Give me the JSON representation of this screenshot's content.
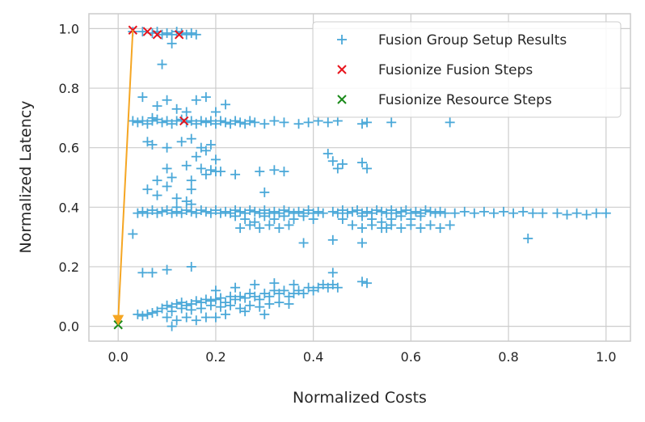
{
  "chart_data": {
    "type": "scatter",
    "xlabel": "Normalized Costs",
    "ylabel": "Normalized Latency",
    "xlim": [
      -0.06,
      1.05
    ],
    "ylim": [
      -0.05,
      1.05
    ],
    "xticks": [
      0.0,
      0.2,
      0.4,
      0.6,
      0.8,
      1.0
    ],
    "xtick_labels": [
      "0.0",
      "0.2",
      "0.4",
      "0.6",
      "0.8",
      "1.0"
    ],
    "yticks": [
      0.0,
      0.2,
      0.4,
      0.6,
      0.8,
      1.0
    ],
    "ytick_labels": [
      "0.0",
      "0.2",
      "0.4",
      "0.6",
      "0.8",
      "1.0"
    ],
    "grid": true,
    "legend_position": "top-right",
    "series": [
      {
        "name": "Fusion Group Setup Results",
        "marker": "plus",
        "color": "#4aa8d8",
        "points": [
          [
            0.03,
            0.99
          ],
          [
            0.05,
            0.99
          ],
          [
            0.07,
            0.985
          ],
          [
            0.08,
            0.99
          ],
          [
            0.09,
            0.98
          ],
          [
            0.1,
            0.985
          ],
          [
            0.11,
            0.98
          ],
          [
            0.12,
            0.99
          ],
          [
            0.13,
            0.985
          ],
          [
            0.14,
            0.98
          ],
          [
            0.15,
            0.985
          ],
          [
            0.16,
            0.98
          ],
          [
            0.11,
            0.95
          ],
          [
            0.09,
            0.88
          ],
          [
            0.05,
            0.77
          ],
          [
            0.08,
            0.74
          ],
          [
            0.1,
            0.76
          ],
          [
            0.12,
            0.73
          ],
          [
            0.14,
            0.72
          ],
          [
            0.16,
            0.76
          ],
          [
            0.18,
            0.77
          ],
          [
            0.22,
            0.745
          ],
          [
            0.07,
            0.7
          ],
          [
            0.2,
            0.72
          ],
          [
            0.03,
            0.69
          ],
          [
            0.04,
            0.685
          ],
          [
            0.05,
            0.69
          ],
          [
            0.06,
            0.68
          ],
          [
            0.07,
            0.69
          ],
          [
            0.08,
            0.695
          ],
          [
            0.09,
            0.685
          ],
          [
            0.1,
            0.69
          ],
          [
            0.11,
            0.68
          ],
          [
            0.12,
            0.69
          ],
          [
            0.13,
            0.695
          ],
          [
            0.14,
            0.685
          ],
          [
            0.15,
            0.69
          ],
          [
            0.16,
            0.68
          ],
          [
            0.17,
            0.69
          ],
          [
            0.18,
            0.685
          ],
          [
            0.19,
            0.69
          ],
          [
            0.2,
            0.68
          ],
          [
            0.21,
            0.69
          ],
          [
            0.22,
            0.685
          ],
          [
            0.23,
            0.68
          ],
          [
            0.24,
            0.69
          ],
          [
            0.25,
            0.685
          ],
          [
            0.26,
            0.68
          ],
          [
            0.27,
            0.69
          ],
          [
            0.28,
            0.685
          ],
          [
            0.3,
            0.68
          ],
          [
            0.32,
            0.69
          ],
          [
            0.34,
            0.685
          ],
          [
            0.37,
            0.68
          ],
          [
            0.39,
            0.685
          ],
          [
            0.41,
            0.69
          ],
          [
            0.43,
            0.685
          ],
          [
            0.45,
            0.69
          ],
          [
            0.5,
            0.68
          ],
          [
            0.51,
            0.685
          ],
          [
            0.56,
            0.685
          ],
          [
            0.68,
            0.685
          ],
          [
            0.06,
            0.62
          ],
          [
            0.07,
            0.61
          ],
          [
            0.1,
            0.6
          ],
          [
            0.13,
            0.62
          ],
          [
            0.15,
            0.63
          ],
          [
            0.17,
            0.6
          ],
          [
            0.18,
            0.59
          ],
          [
            0.19,
            0.61
          ],
          [
            0.16,
            0.57
          ],
          [
            0.2,
            0.56
          ],
          [
            0.43,
            0.58
          ],
          [
            0.44,
            0.555
          ],
          [
            0.46,
            0.545
          ],
          [
            0.5,
            0.55
          ],
          [
            0.51,
            0.53
          ],
          [
            0.45,
            0.53
          ],
          [
            0.1,
            0.53
          ],
          [
            0.14,
            0.54
          ],
          [
            0.17,
            0.53
          ],
          [
            0.19,
            0.525
          ],
          [
            0.2,
            0.52
          ],
          [
            0.21,
            0.52
          ],
          [
            0.24,
            0.51
          ],
          [
            0.29,
            0.52
          ],
          [
            0.32,
            0.525
          ],
          [
            0.34,
            0.52
          ],
          [
            0.08,
            0.49
          ],
          [
            0.11,
            0.5
          ],
          [
            0.15,
            0.49
          ],
          [
            0.18,
            0.51
          ],
          [
            0.06,
            0.46
          ],
          [
            0.1,
            0.47
          ],
          [
            0.15,
            0.46
          ],
          [
            0.3,
            0.45
          ],
          [
            0.08,
            0.44
          ],
          [
            0.12,
            0.43
          ],
          [
            0.14,
            0.42
          ],
          [
            0.04,
            0.38
          ],
          [
            0.05,
            0.385
          ],
          [
            0.06,
            0.38
          ],
          [
            0.07,
            0.39
          ],
          [
            0.08,
            0.38
          ],
          [
            0.09,
            0.385
          ],
          [
            0.1,
            0.39
          ],
          [
            0.11,
            0.38
          ],
          [
            0.12,
            0.385
          ],
          [
            0.13,
            0.38
          ],
          [
            0.14,
            0.39
          ],
          [
            0.15,
            0.385
          ],
          [
            0.16,
            0.38
          ],
          [
            0.17,
            0.39
          ],
          [
            0.18,
            0.385
          ],
          [
            0.19,
            0.38
          ],
          [
            0.2,
            0.39
          ],
          [
            0.21,
            0.38
          ],
          [
            0.22,
            0.385
          ],
          [
            0.23,
            0.38
          ],
          [
            0.24,
            0.39
          ],
          [
            0.25,
            0.385
          ],
          [
            0.26,
            0.38
          ],
          [
            0.27,
            0.39
          ],
          [
            0.28,
            0.385
          ],
          [
            0.29,
            0.38
          ],
          [
            0.3,
            0.39
          ],
          [
            0.31,
            0.38
          ],
          [
            0.32,
            0.385
          ],
          [
            0.33,
            0.38
          ],
          [
            0.34,
            0.39
          ],
          [
            0.35,
            0.385
          ],
          [
            0.36,
            0.38
          ],
          [
            0.37,
            0.385
          ],
          [
            0.38,
            0.38
          ],
          [
            0.39,
            0.39
          ],
          [
            0.4,
            0.38
          ],
          [
            0.41,
            0.385
          ],
          [
            0.42,
            0.38
          ],
          [
            0.44,
            0.385
          ],
          [
            0.45,
            0.38
          ],
          [
            0.46,
            0.39
          ],
          [
            0.47,
            0.38
          ],
          [
            0.48,
            0.385
          ],
          [
            0.49,
            0.39
          ],
          [
            0.5,
            0.38
          ],
          [
            0.51,
            0.385
          ],
          [
            0.52,
            0.38
          ],
          [
            0.53,
            0.39
          ],
          [
            0.54,
            0.385
          ],
          [
            0.55,
            0.38
          ],
          [
            0.56,
            0.39
          ],
          [
            0.57,
            0.38
          ],
          [
            0.58,
            0.385
          ],
          [
            0.59,
            0.39
          ],
          [
            0.6,
            0.38
          ],
          [
            0.61,
            0.385
          ],
          [
            0.62,
            0.38
          ],
          [
            0.63,
            0.39
          ],
          [
            0.64,
            0.385
          ],
          [
            0.65,
            0.38
          ],
          [
            0.66,
            0.385
          ],
          [
            0.67,
            0.38
          ],
          [
            0.69,
            0.38
          ],
          [
            0.71,
            0.385
          ],
          [
            0.73,
            0.38
          ],
          [
            0.75,
            0.385
          ],
          [
            0.77,
            0.38
          ],
          [
            0.79,
            0.385
          ],
          [
            0.81,
            0.38
          ],
          [
            0.83,
            0.385
          ],
          [
            0.85,
            0.38
          ],
          [
            0.87,
            0.38
          ],
          [
            0.9,
            0.38
          ],
          [
            0.92,
            0.375
          ],
          [
            0.94,
            0.38
          ],
          [
            0.96,
            0.375
          ],
          [
            0.98,
            0.38
          ],
          [
            1.0,
            0.38
          ],
          [
            0.24,
            0.37
          ],
          [
            0.26,
            0.36
          ],
          [
            0.28,
            0.35
          ],
          [
            0.3,
            0.37
          ],
          [
            0.32,
            0.36
          ],
          [
            0.34,
            0.37
          ],
          [
            0.36,
            0.36
          ],
          [
            0.38,
            0.37
          ],
          [
            0.4,
            0.36
          ],
          [
            0.46,
            0.36
          ],
          [
            0.5,
            0.37
          ],
          [
            0.52,
            0.36
          ],
          [
            0.54,
            0.35
          ],
          [
            0.56,
            0.36
          ],
          [
            0.58,
            0.37
          ],
          [
            0.6,
            0.36
          ],
          [
            0.62,
            0.37
          ],
          [
            0.25,
            0.33
          ],
          [
            0.27,
            0.34
          ],
          [
            0.29,
            0.33
          ],
          [
            0.31,
            0.34
          ],
          [
            0.33,
            0.33
          ],
          [
            0.35,
            0.34
          ],
          [
            0.48,
            0.34
          ],
          [
            0.5,
            0.33
          ],
          [
            0.52,
            0.34
          ],
          [
            0.54,
            0.33
          ],
          [
            0.56,
            0.34
          ],
          [
            0.58,
            0.33
          ],
          [
            0.6,
            0.34
          ],
          [
            0.62,
            0.33
          ],
          [
            0.64,
            0.34
          ],
          [
            0.66,
            0.33
          ],
          [
            0.68,
            0.34
          ],
          [
            0.03,
            0.31
          ],
          [
            0.38,
            0.28
          ],
          [
            0.44,
            0.29
          ],
          [
            0.5,
            0.28
          ],
          [
            0.55,
            0.33
          ],
          [
            0.84,
            0.295
          ],
          [
            0.12,
            0.4
          ],
          [
            0.15,
            0.41
          ],
          [
            0.05,
            0.18
          ],
          [
            0.07,
            0.18
          ],
          [
            0.1,
            0.19
          ],
          [
            0.15,
            0.2
          ],
          [
            0.44,
            0.18
          ],
          [
            0.04,
            0.04
          ],
          [
            0.05,
            0.035
          ],
          [
            0.06,
            0.04
          ],
          [
            0.07,
            0.045
          ],
          [
            0.08,
            0.05
          ],
          [
            0.09,
            0.06
          ],
          [
            0.1,
            0.07
          ],
          [
            0.11,
            0.065
          ],
          [
            0.12,
            0.075
          ],
          [
            0.13,
            0.08
          ],
          [
            0.14,
            0.07
          ],
          [
            0.15,
            0.075
          ],
          [
            0.16,
            0.085
          ],
          [
            0.17,
            0.08
          ],
          [
            0.18,
            0.09
          ],
          [
            0.19,
            0.085
          ],
          [
            0.2,
            0.09
          ],
          [
            0.21,
            0.095
          ],
          [
            0.22,
            0.08
          ],
          [
            0.23,
            0.1
          ],
          [
            0.24,
            0.09
          ],
          [
            0.25,
            0.1
          ],
          [
            0.26,
            0.095
          ],
          [
            0.27,
            0.11
          ],
          [
            0.28,
            0.1
          ],
          [
            0.29,
            0.09
          ],
          [
            0.3,
            0.11
          ],
          [
            0.31,
            0.1
          ],
          [
            0.32,
            0.12
          ],
          [
            0.33,
            0.11
          ],
          [
            0.34,
            0.12
          ],
          [
            0.35,
            0.1
          ],
          [
            0.36,
            0.11
          ],
          [
            0.37,
            0.12
          ],
          [
            0.38,
            0.11
          ],
          [
            0.39,
            0.13
          ],
          [
            0.4,
            0.12
          ],
          [
            0.41,
            0.13
          ],
          [
            0.42,
            0.14
          ],
          [
            0.43,
            0.13
          ],
          [
            0.44,
            0.14
          ],
          [
            0.45,
            0.13
          ],
          [
            0.5,
            0.15
          ],
          [
            0.51,
            0.145
          ],
          [
            0.11,
            0.05
          ],
          [
            0.13,
            0.06
          ],
          [
            0.15,
            0.055
          ],
          [
            0.17,
            0.06
          ],
          [
            0.19,
            0.07
          ],
          [
            0.21,
            0.065
          ],
          [
            0.23,
            0.07
          ],
          [
            0.25,
            0.06
          ],
          [
            0.27,
            0.07
          ],
          [
            0.29,
            0.065
          ],
          [
            0.31,
            0.075
          ],
          [
            0.33,
            0.08
          ],
          [
            0.35,
            0.075
          ],
          [
            0.2,
            0.12
          ],
          [
            0.24,
            0.13
          ],
          [
            0.28,
            0.14
          ],
          [
            0.32,
            0.145
          ],
          [
            0.36,
            0.14
          ],
          [
            0.1,
            0.03
          ],
          [
            0.12,
            0.02
          ],
          [
            0.14,
            0.03
          ],
          [
            0.16,
            0.02
          ],
          [
            0.18,
            0.03
          ],
          [
            0.11,
            0.0
          ],
          [
            0.2,
            0.03
          ],
          [
            0.22,
            0.04
          ],
          [
            0.26,
            0.05
          ],
          [
            0.3,
            0.04
          ]
        ]
      },
      {
        "name": "Fusionize Fusion Steps",
        "marker": "x",
        "color": "#e8141c",
        "points": [
          [
            0.03,
            0.995
          ],
          [
            0.06,
            0.99
          ],
          [
            0.08,
            0.98
          ],
          [
            0.125,
            0.98
          ],
          [
            0.135,
            0.69
          ]
        ]
      },
      {
        "name": "Fusionize Resource Steps",
        "marker": "x",
        "color": "#1a8a1a",
        "points": [
          [
            0.0,
            0.005
          ]
        ]
      }
    ],
    "lines": [
      {
        "name": "fusionize-path",
        "color": "#f5a623",
        "points": [
          [
            0.0,
            0.0
          ],
          [
            0.03,
            0.995
          ]
        ],
        "arrowhead_at": [
          0.0,
          0.0
        ]
      }
    ]
  }
}
